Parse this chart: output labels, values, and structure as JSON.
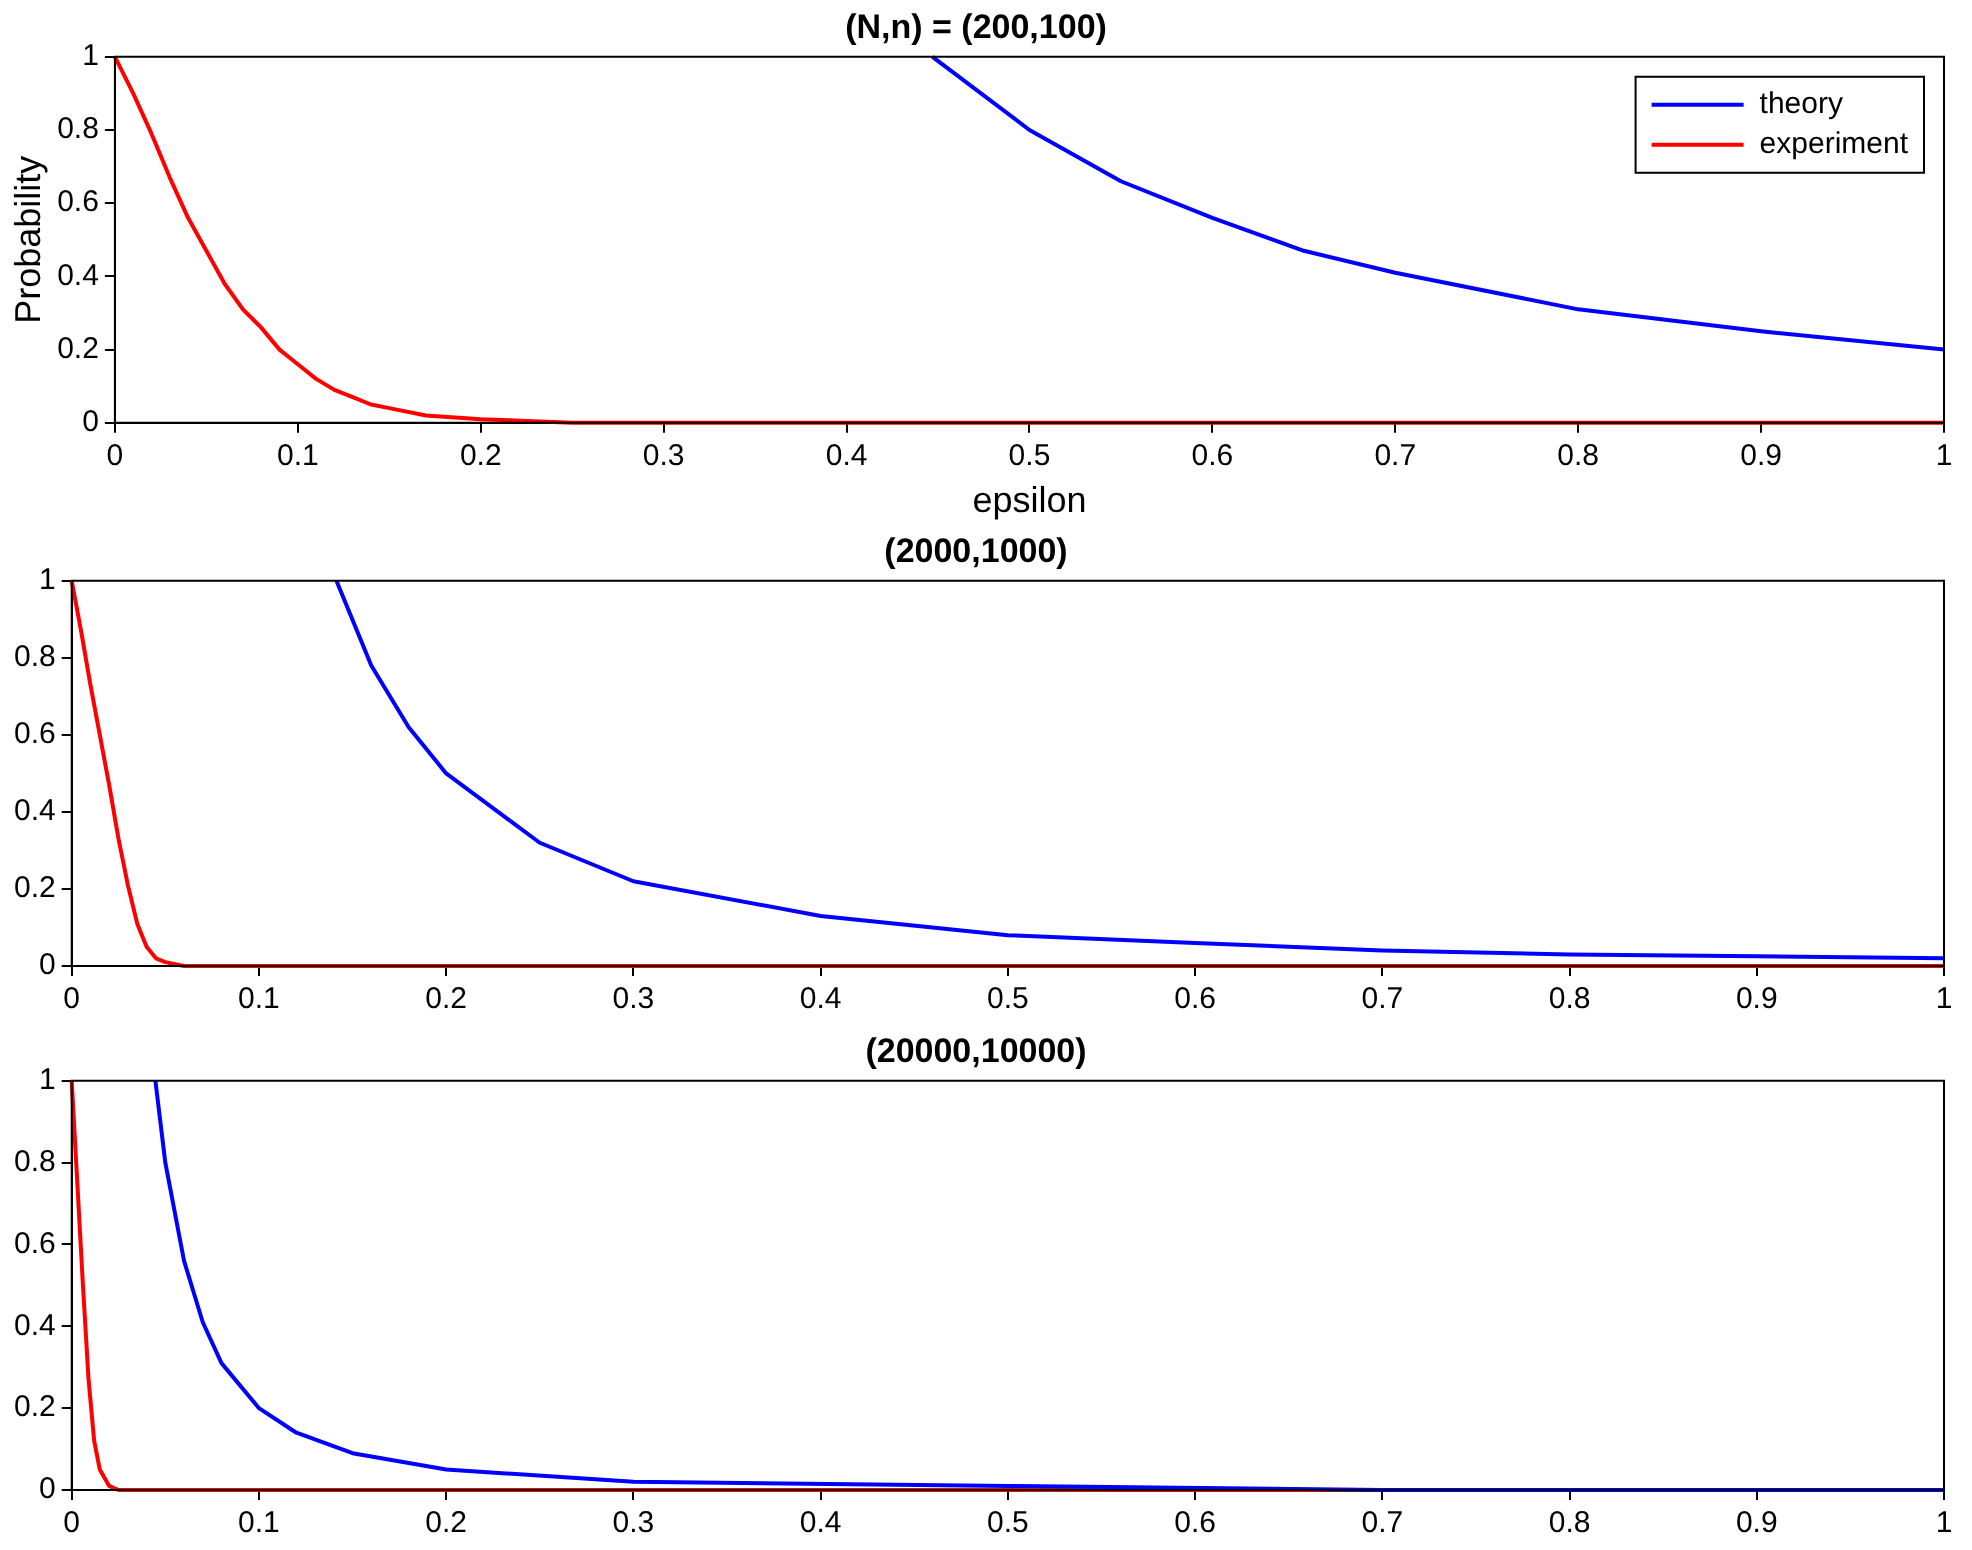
{
  "chart_data": [
    {
      "type": "line",
      "title": "(N,n) = (200,100)",
      "xlabel": "epsilon",
      "ylabel": "Probability",
      "xlim": [
        0,
        1
      ],
      "ylim": [
        0,
        1
      ],
      "xticks": [
        0,
        0.1,
        0.2,
        0.3,
        0.4,
        0.5,
        0.6,
        0.7,
        0.8,
        0.9,
        1
      ],
      "yticks": [
        0,
        0.2,
        0.4,
        0.6,
        0.8,
        1
      ],
      "grid": false,
      "legend": "top right",
      "marker": "none",
      "series": [
        {
          "name": "theory",
          "color": "#0000ff",
          "x": [
            0.447,
            0.5,
            0.55,
            0.6,
            0.65,
            0.7,
            0.8,
            0.9,
            1
          ],
          "values": [
            1,
            0.8,
            0.66,
            0.56,
            0.47,
            0.41,
            0.31,
            0.25,
            0.2
          ]
        },
        {
          "name": "experiment",
          "color": "#ff0000",
          "x": [
            0,
            0.01,
            0.02,
            0.03,
            0.04,
            0.05,
            0.06,
            0.07,
            0.08,
            0.09,
            0.1,
            0.11,
            0.12,
            0.13,
            0.14,
            0.15,
            0.17,
            0.2,
            0.25,
            0.3,
            0.5,
            0.7,
            1
          ],
          "values": [
            1,
            0.9,
            0.79,
            0.67,
            0.56,
            0.47,
            0.38,
            0.31,
            0.26,
            0.2,
            0.16,
            0.12,
            0.09,
            0.07,
            0.05,
            0.04,
            0.02,
            0.01,
            0,
            0,
            0,
            0,
            0
          ]
        }
      ]
    },
    {
      "type": "line",
      "title": "(2000,1000)",
      "xlim": [
        0,
        1
      ],
      "ylim": [
        0,
        1
      ],
      "xticks": [
        0,
        0.1,
        0.2,
        0.3,
        0.4,
        0.5,
        0.6,
        0.7,
        0.8,
        0.9,
        1
      ],
      "yticks": [
        0,
        0.2,
        0.4,
        0.6,
        0.8,
        1
      ],
      "grid": false,
      "legend": false,
      "marker": "none",
      "series": [
        {
          "color": "#0000ff",
          "x": [
            0.1414,
            0.16,
            0.18,
            0.2,
            0.25,
            0.3,
            0.4,
            0.5,
            0.6,
            0.7,
            0.8,
            0.9,
            1
          ],
          "values": [
            1,
            0.78,
            0.62,
            0.5,
            0.32,
            0.22,
            0.13,
            0.08,
            0.06,
            0.04,
            0.03,
            0.025,
            0.02
          ]
        },
        {
          "color": "#ff0000",
          "x": [
            0,
            0.005,
            0.01,
            0.015,
            0.02,
            0.025,
            0.03,
            0.035,
            0.04,
            0.045,
            0.05,
            0.06,
            0.08,
            0.1,
            1
          ],
          "values": [
            1,
            0.87,
            0.73,
            0.6,
            0.47,
            0.33,
            0.21,
            0.11,
            0.05,
            0.02,
            0.01,
            0,
            0,
            0,
            0
          ]
        }
      ]
    },
    {
      "type": "line",
      "title": "(20000,10000)",
      "xlim": [
        0,
        1
      ],
      "ylim": [
        0,
        1
      ],
      "xticks": [
        0,
        0.1,
        0.2,
        0.3,
        0.4,
        0.5,
        0.6,
        0.7,
        0.8,
        0.9,
        1
      ],
      "yticks": [
        0,
        0.2,
        0.4,
        0.6,
        0.8,
        1
      ],
      "grid": false,
      "legend": false,
      "marker": "none",
      "series": [
        {
          "color": "#0000ff",
          "x": [
            0.0447,
            0.05,
            0.06,
            0.07,
            0.08,
            0.1,
            0.12,
            0.15,
            0.2,
            0.3,
            0.5,
            0.7,
            1
          ],
          "values": [
            1,
            0.8,
            0.56,
            0.41,
            0.31,
            0.2,
            0.14,
            0.09,
            0.05,
            0.02,
            0.01,
            0,
            0
          ]
        },
        {
          "color": "#ff0000",
          "x": [
            0,
            0.003,
            0.006,
            0.009,
            0.012,
            0.015,
            0.02,
            0.025,
            0.05,
            1
          ],
          "values": [
            1,
            0.75,
            0.5,
            0.27,
            0.12,
            0.05,
            0.01,
            0,
            0,
            0
          ]
        }
      ]
    }
  ]
}
